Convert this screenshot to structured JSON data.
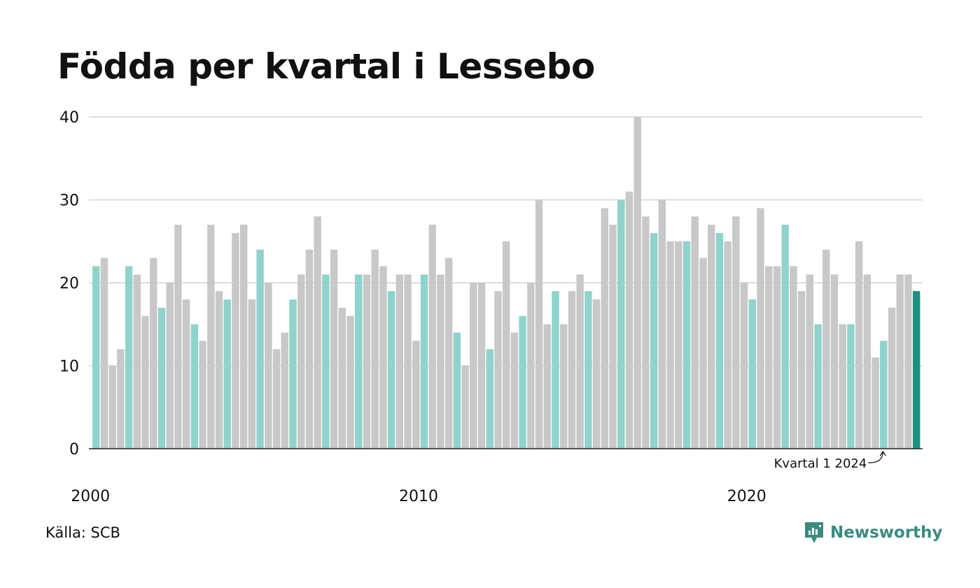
{
  "title": "Födda per kvartal i Lessebo",
  "source": "Källa: SCB",
  "brand": {
    "name": "Newsworthy",
    "icon": "newsworthy-logo-icon"
  },
  "colors": {
    "bar_default": "#c8c8c8",
    "bar_q1": "#8fd3cc",
    "bar_latest": "#1a9080",
    "grid": "#dddddd",
    "axis": "#222222",
    "brand": "#3a8a80"
  },
  "chart_data": {
    "type": "bar",
    "title": "Födda per kvartal i Lessebo",
    "xlabel": "",
    "ylabel": "",
    "ylim": [
      0,
      40
    ],
    "yticks": [
      0,
      10,
      20,
      30,
      40
    ],
    "xticks": [
      "2000",
      "2010",
      "2020"
    ],
    "grid": true,
    "annotation": {
      "text": "Kvartal 1 2024",
      "target_year": 2024,
      "target_quarter": 1
    },
    "start": {
      "year": 2000,
      "quarter": 1
    },
    "values": [
      22,
      23,
      10,
      12,
      22,
      21,
      16,
      23,
      17,
      20,
      27,
      18,
      15,
      13,
      27,
      19,
      18,
      26,
      27,
      18,
      24,
      20,
      12,
      14,
      18,
      21,
      24,
      28,
      21,
      24,
      17,
      16,
      21,
      21,
      24,
      22,
      19,
      21,
      21,
      13,
      21,
      27,
      21,
      23,
      14,
      10,
      20,
      20,
      12,
      19,
      25,
      14,
      16,
      20,
      30,
      15,
      19,
      15,
      19,
      21,
      19,
      18,
      29,
      27,
      30,
      31,
      40,
      28,
      26,
      30,
      25,
      25,
      25,
      28,
      23,
      27,
      26,
      25,
      28,
      20,
      18,
      29,
      22,
      22,
      27,
      22,
      19,
      21,
      15,
      24,
      21,
      15,
      15,
      25,
      21,
      11,
      13,
      17,
      21,
      21,
      19
    ]
  }
}
